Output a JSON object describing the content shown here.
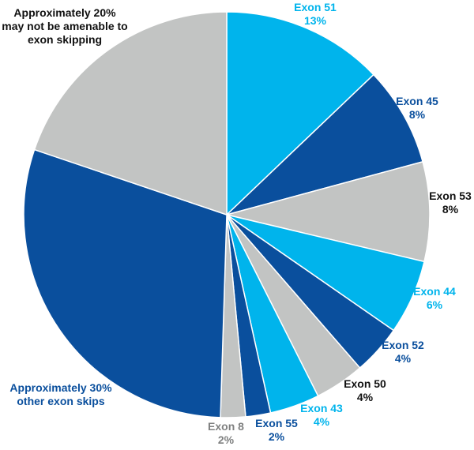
{
  "chart_data": {
    "type": "pie",
    "unit": "%",
    "colors": {
      "light_blue": "#00b4ec",
      "dark_blue": "#0a4f9d",
      "gray": "#c2c4c3",
      "label_black": "#111111",
      "label_gray": "#7f8080"
    },
    "slices": [
      {
        "lines": [
          "Exon 51",
          "13%"
        ],
        "value": 13,
        "fill": "#00b4ec",
        "label_color": "#00b4ec"
      },
      {
        "lines": [
          "Exon 45",
          "8%"
        ],
        "value": 8,
        "fill": "#0a4f9d",
        "label_color": "#0a4f9d"
      },
      {
        "lines": [
          "Exon 53",
          "8%"
        ],
        "value": 8,
        "fill": "#c2c4c3",
        "label_color": "#111111"
      },
      {
        "lines": [
          "Exon 44",
          "6%"
        ],
        "value": 6,
        "fill": "#00b4ec",
        "label_color": "#00b4ec"
      },
      {
        "lines": [
          "Exon 52",
          "4%"
        ],
        "value": 4,
        "fill": "#0a4f9d",
        "label_color": "#0a4f9d"
      },
      {
        "lines": [
          "Exon 50",
          "4%"
        ],
        "value": 4,
        "fill": "#c2c4c3",
        "label_color": "#111111"
      },
      {
        "lines": [
          "Exon 43",
          "4%"
        ],
        "value": 4,
        "fill": "#00b4ec",
        "label_color": "#00b4ec"
      },
      {
        "lines": [
          "Exon 55",
          "2%"
        ],
        "value": 2,
        "fill": "#0a4f9d",
        "label_color": "#0a4f9d"
      },
      {
        "lines": [
          "Exon 8",
          "2%"
        ],
        "value": 2,
        "fill": "#c2c4c3",
        "label_color": "#7f8080"
      },
      {
        "lines": [
          "Approximately 30%",
          "other exon skips"
        ],
        "value": 30,
        "fill": "#0a4f9d",
        "label_color": "#0a4f9d"
      },
      {
        "lines": [
          "Approximately 20%",
          "may not be amenable to",
          "exon skipping"
        ],
        "value": 20,
        "fill": "#c2c4c3",
        "label_color": "#111111"
      }
    ]
  }
}
